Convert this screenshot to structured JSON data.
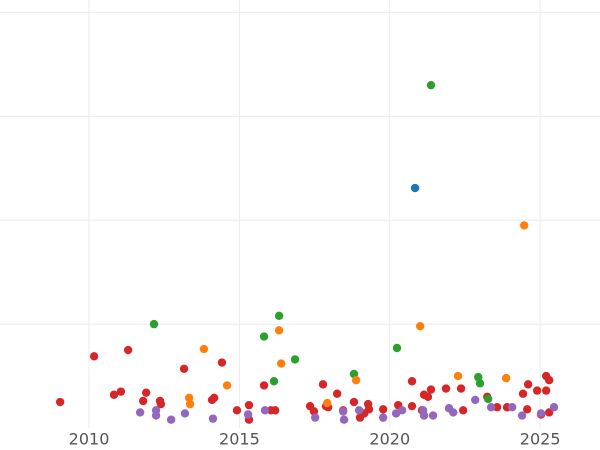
{
  "chart_data": {
    "type": "scatter",
    "xlim": [
      2007.04,
      2026.99
    ],
    "xticks": [
      2010,
      2015,
      2020,
      2025
    ],
    "ylim": [
      0,
      4.12
    ],
    "yticks": [
      1,
      2,
      3,
      4
    ],
    "grid": true,
    "series": [
      {
        "color": "#d62728",
        "x": [
          2009.04,
          2010.17,
          2010.83,
          2011.06,
          2011.3,
          2011.8,
          2011.9,
          2012.36,
          2012.39,
          2013.16,
          2014.09,
          2014.16,
          2014.42,
          2014.92,
          2015.32,
          2015.32,
          2015.82,
          2016.05,
          2016.19,
          2017.35,
          2017.48,
          2017.78,
          2017.88,
          2017.95,
          2018.25,
          2018.45,
          2018.81,
          2019.01,
          2019.15,
          2019.28,
          2019.31,
          2019.78,
          2020.28,
          2020.74,
          2020.74,
          2021.07,
          2021.14,
          2021.27,
          2021.37,
          2021.87,
          2022.37,
          2022.44,
          2023.24,
          2023.57,
          2023.9,
          2024.43,
          2024.57,
          2024.6,
          2024.9,
          2025.03,
          2025.2,
          2025.2,
          2025.3,
          2025.3
        ],
        "y": [
          0.25,
          0.69,
          0.32,
          0.35,
          0.75,
          0.26,
          0.34,
          0.26,
          0.23,
          0.57,
          0.27,
          0.29,
          0.63,
          0.17,
          0.22,
          0.08,
          0.41,
          0.17,
          0.17,
          0.21,
          0.16,
          0.42,
          0.21,
          0.2,
          0.33,
          0.17,
          0.25,
          0.1,
          0.14,
          0.23,
          0.18,
          0.18,
          0.22,
          0.21,
          0.45,
          0.17,
          0.32,
          0.3,
          0.37,
          0.38,
          0.38,
          0.17,
          0.3,
          0.2,
          0.2,
          0.33,
          0.18,
          0.42,
          0.36,
          0.13,
          0.36,
          0.5,
          0.46,
          0.15
        ]
      },
      {
        "color": "#2ca02c",
        "x": [
          2012.16,
          2015.82,
          2016.15,
          2016.32,
          2016.85,
          2018.81,
          2020.24,
          2021.37,
          2022.94,
          2023.0,
          2023.27
        ],
        "y": [
          1.0,
          0.88,
          0.45,
          1.08,
          0.66,
          0.52,
          0.77,
          3.3,
          0.49,
          0.43,
          0.28
        ]
      },
      {
        "color": "#ff7f0e",
        "x": [
          2013.33,
          2013.36,
          2013.82,
          2014.59,
          2016.32,
          2016.39,
          2017.92,
          2018.88,
          2021.01,
          2022.27,
          2023.87,
          2024.47
        ],
        "y": [
          0.29,
          0.23,
          0.76,
          0.41,
          0.94,
          0.62,
          0.24,
          0.46,
          0.98,
          0.5,
          0.48,
          1.95
        ]
      },
      {
        "color": "#9467bd",
        "x": [
          2011.7,
          2012.23,
          2012.23,
          2012.73,
          2013.19,
          2014.12,
          2015.29,
          2015.85,
          2017.52,
          2018.45,
          2018.48,
          2018.98,
          2019.78,
          2020.21,
          2020.41,
          2021.11,
          2021.14,
          2021.44,
          2021.97,
          2022.11,
          2022.84,
          2023.37,
          2024.07,
          2024.4,
          2025.03,
          2025.46
        ],
        "y": [
          0.15,
          0.17,
          0.12,
          0.08,
          0.14,
          0.09,
          0.13,
          0.17,
          0.1,
          0.16,
          0.08,
          0.17,
          0.1,
          0.14,
          0.17,
          0.17,
          0.12,
          0.12,
          0.19,
          0.15,
          0.27,
          0.2,
          0.2,
          0.12,
          0.14,
          0.2
        ]
      },
      {
        "color": "#1f77b4",
        "x": [
          2020.84
        ],
        "y": [
          2.31
        ]
      }
    ]
  }
}
